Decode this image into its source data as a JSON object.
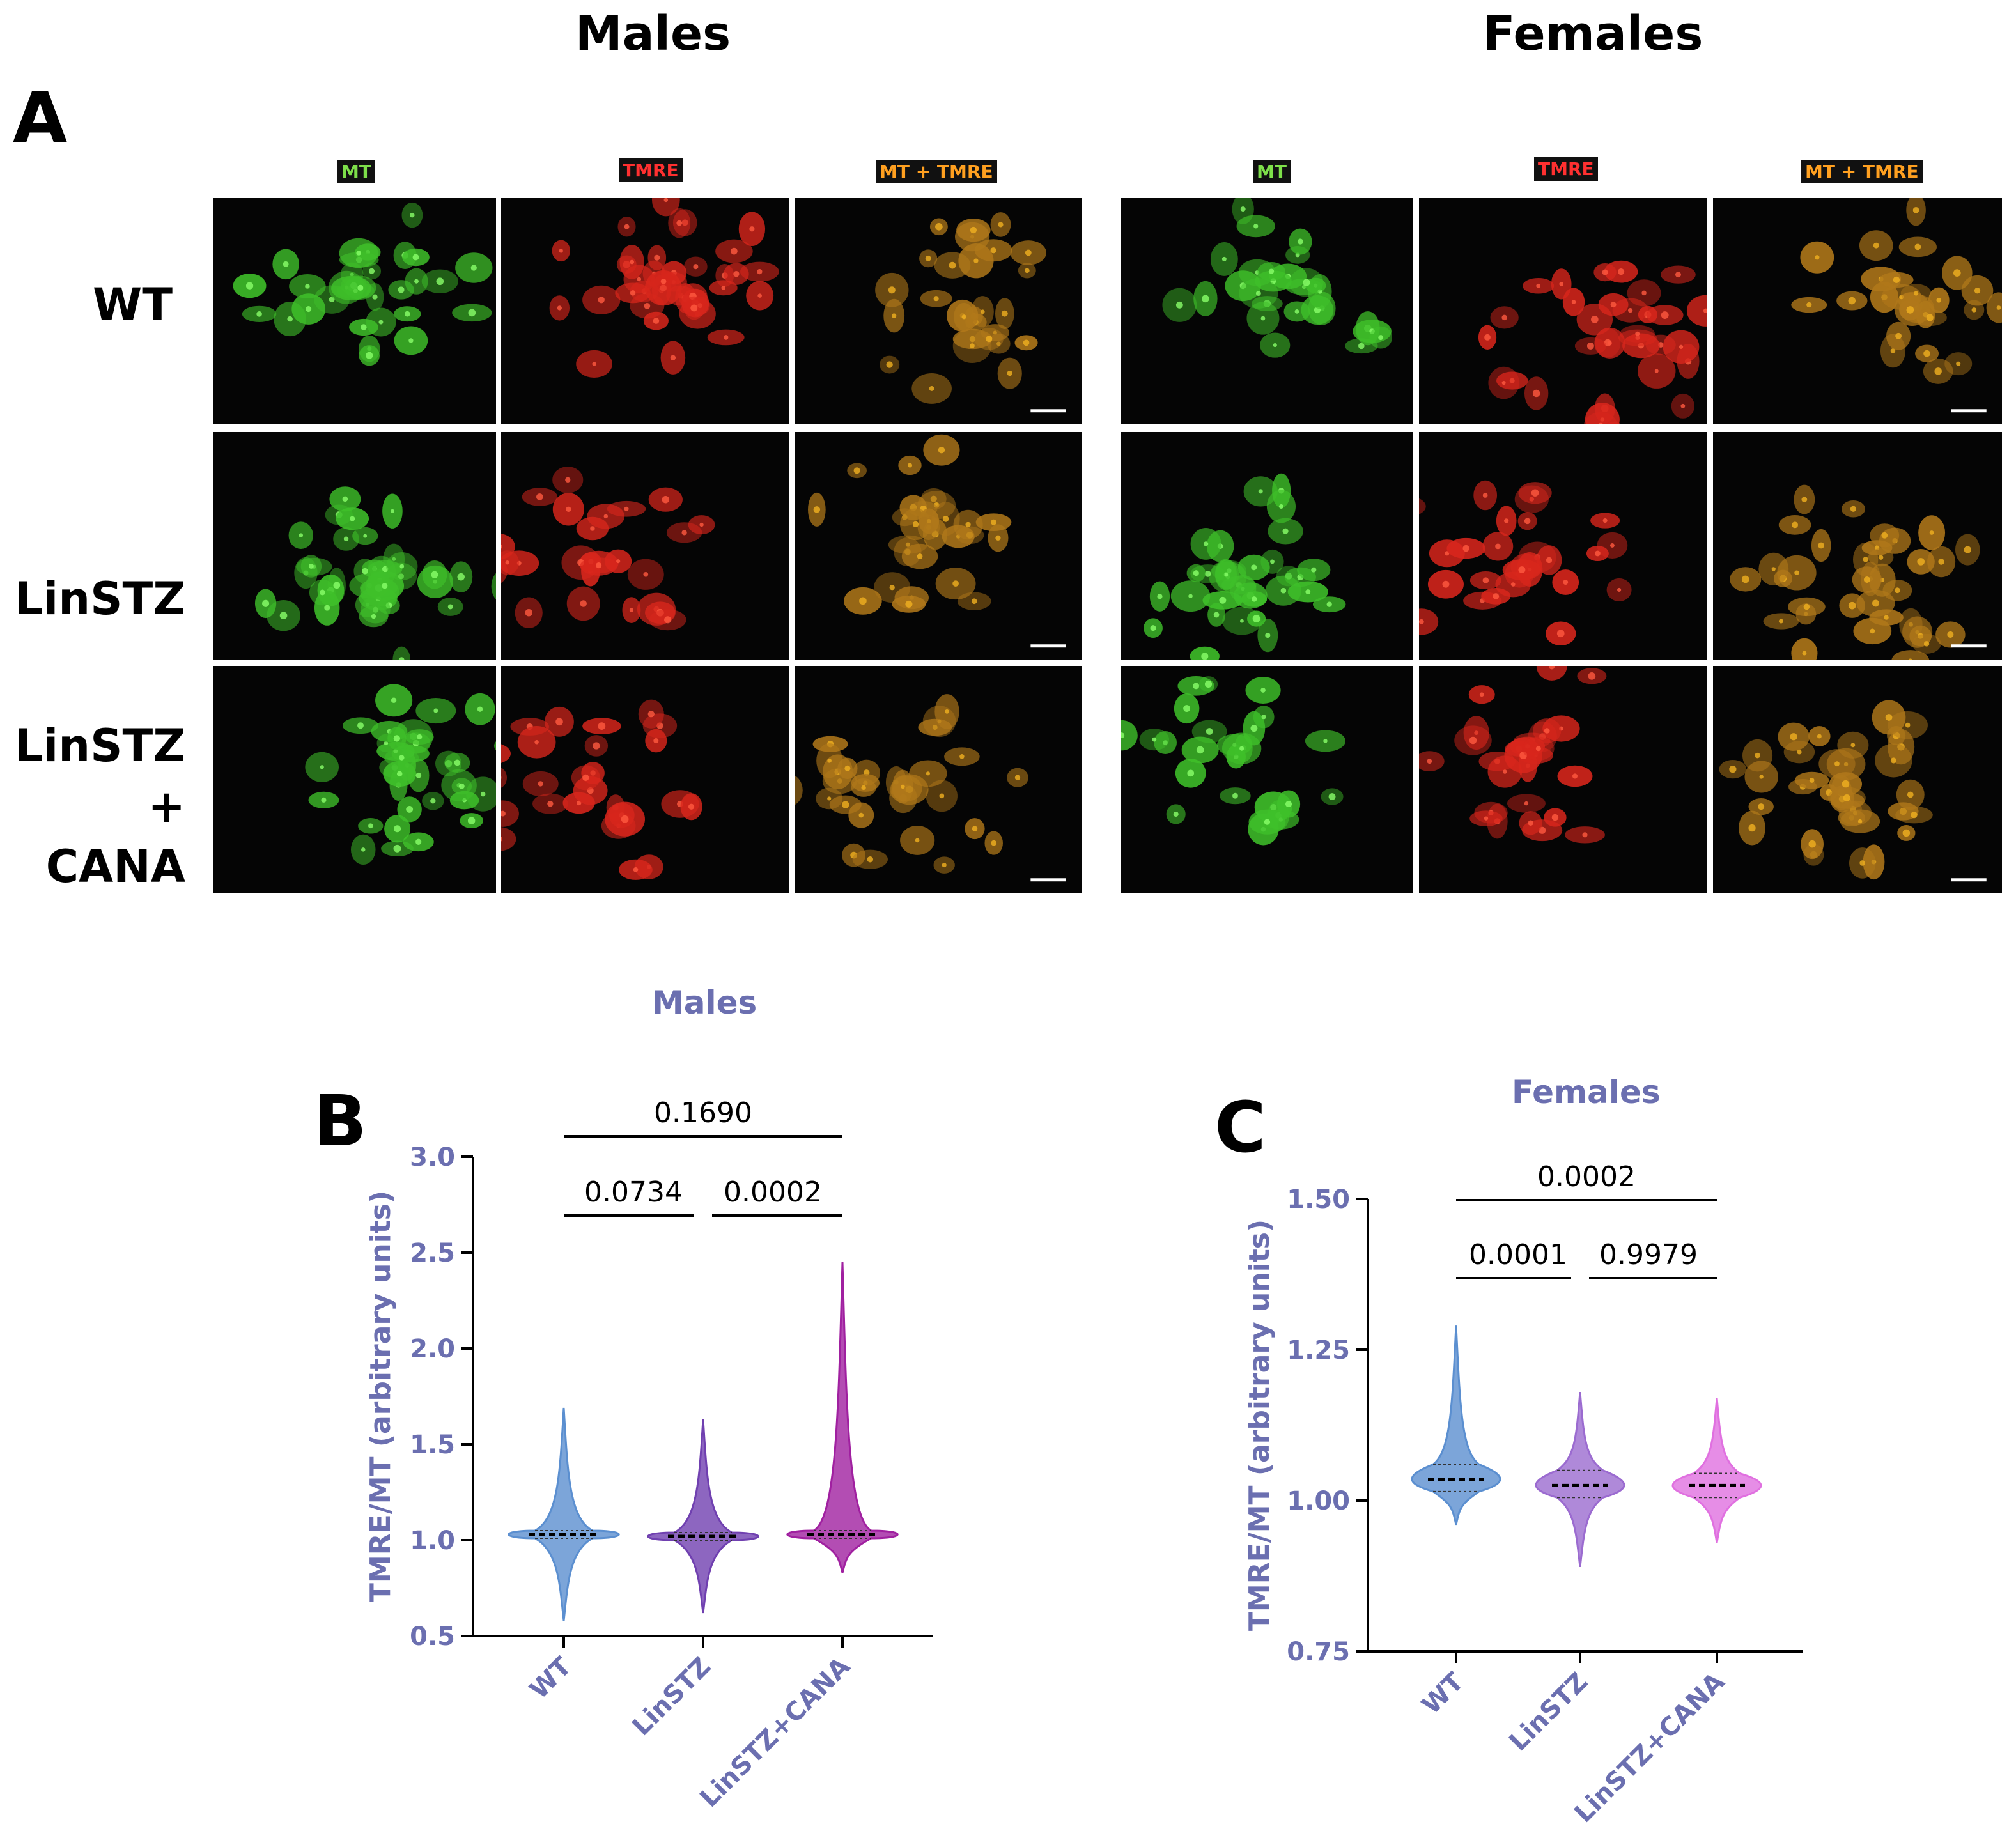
{
  "panel_a": {
    "letter": "A",
    "groups": [
      {
        "title": "Males"
      },
      {
        "title": "Females"
      }
    ],
    "channels": [
      {
        "label": "MT",
        "color": "#7ee04a"
      },
      {
        "label": "TMRE",
        "color": "#ff3030"
      },
      {
        "label": "MT + TMRE",
        "color": "#ffa020"
      }
    ],
    "rows": [
      {
        "label_lines": [
          "WT"
        ]
      },
      {
        "label_lines": [
          "LinSTZ"
        ]
      },
      {
        "label_lines": [
          "LinSTZ",
          "+ CANA"
        ]
      }
    ]
  },
  "colors": {
    "axis_text": "#6b6fb0",
    "WT": "#5b8fd0",
    "LinSTZ": "#9b6bd0",
    "LinSTZ+CANA": "#e070e0",
    "LinSTZ+CANA_males": "#a020a0",
    "LinSTZ_males": "#7040b0"
  },
  "chart_data": [
    {
      "panel": "B",
      "type": "violin",
      "title": "Males",
      "ylabel": "TMRE/MT (arbitrary units)",
      "xlabel": "",
      "categories": [
        "WT",
        "LinSTZ",
        "LinSTZ+CANA"
      ],
      "ylim": [
        0.5,
        3.0
      ],
      "yticks": [
        "0.5",
        "1.0",
        "1.5",
        "2.0",
        "2.5",
        "3.0"
      ],
      "series": [
        {
          "category": "WT",
          "min": 0.58,
          "max": 1.69,
          "median": 1.03,
          "q1": 1.01,
          "q3": 1.05
        },
        {
          "category": "LinSTZ",
          "min": 0.62,
          "max": 1.63,
          "median": 1.02,
          "q1": 1.0,
          "q3": 1.04
        },
        {
          "category": "LinSTZ+CANA",
          "min": 0.83,
          "max": 2.45,
          "median": 1.03,
          "q1": 1.01,
          "q3": 1.05
        }
      ],
      "comparisons": [
        {
          "from": "WT",
          "to": "LinSTZ+CANA",
          "label": "0.1690",
          "level": 2
        },
        {
          "from": "WT",
          "to": "LinSTZ",
          "label": "0.0734",
          "level": 1
        },
        {
          "from": "LinSTZ",
          "to": "LinSTZ+CANA",
          "label": "0.0002",
          "level": 1
        }
      ]
    },
    {
      "panel": "C",
      "type": "violin",
      "title": "Females",
      "ylabel": "TMRE/MT (arbitrary units)",
      "xlabel": "",
      "categories": [
        "WT",
        "LinSTZ",
        "LinSTZ+CANA"
      ],
      "ylim": [
        0.75,
        1.5
      ],
      "yticks": [
        "0.75",
        "1.00",
        "1.25",
        "1.50"
      ],
      "series": [
        {
          "category": "WT",
          "min": 0.96,
          "max": 1.29,
          "median": 1.035,
          "q1": 1.015,
          "q3": 1.06
        },
        {
          "category": "LinSTZ",
          "min": 0.89,
          "max": 1.18,
          "median": 1.025,
          "q1": 1.005,
          "q3": 1.05
        },
        {
          "category": "LinSTZ+CANA",
          "min": 0.93,
          "max": 1.17,
          "median": 1.025,
          "q1": 1.005,
          "q3": 1.045
        }
      ],
      "comparisons": [
        {
          "from": "WT",
          "to": "LinSTZ+CANA",
          "label": "0.0002",
          "level": 2
        },
        {
          "from": "WT",
          "to": "LinSTZ",
          "label": "0.0001",
          "level": 1
        },
        {
          "from": "LinSTZ",
          "to": "LinSTZ+CANA",
          "label": "0.9979",
          "level": 1
        }
      ]
    }
  ]
}
